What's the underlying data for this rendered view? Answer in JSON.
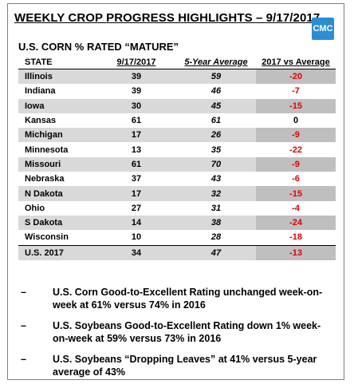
{
  "title": "WEEKLY CROP PROGRESS HIGHLIGHTS – 9/17/2017",
  "logo": "CMC",
  "subtitle": "U.S. CORN % RATED “MATURE”",
  "table": {
    "headers": [
      "STATE",
      "9/17/2017",
      "5-Year Average",
      "2017 vs Average"
    ],
    "rows": [
      {
        "state": "Illinois",
        "current": "39",
        "average": "59",
        "diff": "-20"
      },
      {
        "state": "Indiana",
        "current": "39",
        "average": "46",
        "diff": "-7"
      },
      {
        "state": "Iowa",
        "current": "30",
        "average": "45",
        "diff": "-15"
      },
      {
        "state": "Kansas",
        "current": "61",
        "average": "61",
        "diff": "0"
      },
      {
        "state": "Michigan",
        "current": "17",
        "average": "26",
        "diff": "-9"
      },
      {
        "state": "Minnesota",
        "current": "13",
        "average": "35",
        "diff": "-22"
      },
      {
        "state": "Missouri",
        "current": "61",
        "average": "70",
        "diff": "-9"
      },
      {
        "state": "Nebraska",
        "current": "37",
        "average": "43",
        "diff": "-6"
      },
      {
        "state": "N Dakota",
        "current": "17",
        "average": "32",
        "diff": "-15"
      },
      {
        "state": "Ohio",
        "current": "27",
        "average": "31",
        "diff": "-4"
      },
      {
        "state": "S Dakota",
        "current": "14",
        "average": "38",
        "diff": "-24"
      },
      {
        "state": "Wisconsin",
        "current": "10",
        "average": "28",
        "diff": "-18"
      }
    ],
    "total": {
      "state": "U.S. 2017",
      "current": "34",
      "average": "47",
      "diff": "-13"
    }
  },
  "bullets": [
    "U.S. Corn Good-to-Excellent Rating unchanged week-on-week at 61% versus 74% in 2016",
    "U.S. Soybeans Good-to-Excellent Rating down 1% week-on-week at 59% versus 73% in 2016",
    "U.S. Soybeans “Dropping Leaves” at 41% versus 5-year average of 43%"
  ],
  "bullet_marker": "–",
  "colors": {
    "negative": "#e00000",
    "shade": "#d9d9d9",
    "shade_dark": "#bfbfbf",
    "logo": "#2a8ed6"
  }
}
